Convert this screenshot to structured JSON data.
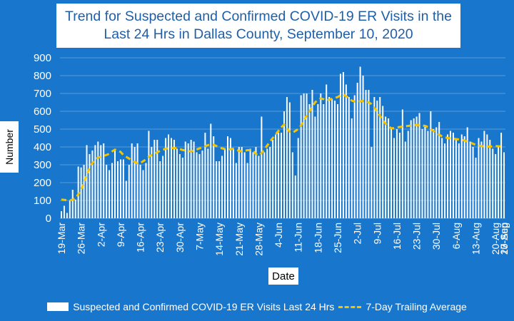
{
  "colors": {
    "background": "#1877cc",
    "bars": "#ffffff",
    "average_line": "#f5c400",
    "grid": "#5a9ad8",
    "title_text": "#1f5fa8"
  },
  "chart_data": {
    "type": "bar",
    "title_line1": "Trend for Suspected and Confirmed COVID-19 ER Visits in the",
    "title_line2": "Last 24 Hrs in Dallas County, September 10, 2020",
    "xlabel": "Date",
    "ylabel": "Number",
    "ylim": [
      0,
      900
    ],
    "yticks": [
      0,
      100,
      200,
      300,
      400,
      500,
      600,
      700,
      800,
      900
    ],
    "xtick_labels": [
      "19-Mar",
      "26-Mar",
      "2-Apr",
      "9-Apr",
      "16-Apr",
      "23-Apr",
      "30-Apr",
      "7-May",
      "14-May",
      "21-May",
      "28-May",
      "4-Jun",
      "11-Jun",
      "18-Jun",
      "25-Jun",
      "2-Jul",
      "9-Jul",
      "16-Jul",
      "23-Jul",
      "30-Jul",
      "6-Aug",
      "13-Aug",
      "20-Aug",
      "27-Aug",
      "3-Sep",
      "10-Sep"
    ],
    "series": [
      {
        "name": "Suspected and Confirmed COVID-19 ER Visits Last 24 Hrs",
        "kind": "bar",
        "values": [
          40,
          70,
          30,
          100,
          160,
          105,
          290,
          285,
          300,
          410,
          360,
          380,
          410,
          430,
          410,
          420,
          300,
          270,
          310,
          390,
          320,
          330,
          330,
          210,
          300,
          420,
          400,
          420,
          300,
          270,
          310,
          490,
          400,
          440,
          440,
          320,
          350,
          450,
          470,
          450,
          440,
          390,
          360,
          340,
          430,
          420,
          440,
          430,
          370,
          360,
          380,
          480,
          390,
          530,
          460,
          320,
          320,
          350,
          390,
          460,
          450,
          390,
          310,
          400,
          400,
          370,
          310,
          390,
          370,
          400,
          350,
          570,
          370,
          390,
          400,
          440,
          470,
          480,
          480,
          600,
          680,
          650,
          370,
          240,
          450,
          690,
          700,
          700,
          640,
          720,
          570,
          640,
          700,
          640,
          750,
          680,
          670,
          660,
          640,
          810,
          820,
          750,
          680,
          560,
          690,
          760,
          850,
          800,
          720,
          720,
          400,
          680,
          660,
          680,
          630,
          570,
          560,
          500,
          450,
          500,
          480,
          610,
          430,
          490,
          550,
          560,
          570,
          590,
          500,
          520,
          490,
          600,
          500,
          510,
          540,
          450,
          420,
          470,
          490,
          480,
          450,
          420,
          470,
          460,
          510,
          430,
          400,
          340,
          450,
          430,
          490,
          470,
          440,
          390,
          360,
          400,
          480,
          370
        ]
      },
      {
        "name": "7-Day Trailing Average",
        "kind": "line",
        "values": [
          105,
          103,
          102,
          100,
          105,
          110,
          135,
          160,
          200,
          245,
          280,
          310,
          330,
          340,
          345,
          350,
          355,
          362,
          375,
          385,
          380,
          372,
          355,
          345,
          335,
          325,
          316,
          308,
          310,
          320,
          330,
          345,
          355,
          362,
          370,
          378,
          384,
          390,
          392,
          393,
          394,
          392,
          388,
          383,
          380,
          376,
          375,
          380,
          386,
          392,
          398,
          405,
          410,
          415,
          412,
          405,
          398,
          392,
          388,
          385,
          388,
          390,
          385,
          378,
          375,
          378,
          382,
          382,
          378,
          360,
          352,
          365,
          385,
          408,
          430,
          450,
          470,
          490,
          510,
          525,
          505,
          485,
          480,
          490,
          500,
          520,
          550,
          575,
          600,
          625,
          650,
          665,
          672,
          668,
          660,
          665,
          670,
          675,
          680,
          690,
          692,
          685,
          672,
          660,
          655,
          655,
          656,
          658,
          656,
          650,
          640,
          620,
          598,
          575,
          550,
          530,
          515,
          505,
          505,
          510,
          512,
          514,
          516,
          518,
          520,
          522,
          524,
          522,
          520,
          518,
          512,
          500,
          490,
          478,
          468,
          460,
          455,
          450,
          448,
          446,
          444,
          442,
          440,
          436,
          430,
          425,
          418,
          412,
          408,
          405,
          403,
          402,
          402,
          403,
          405,
          404,
          402,
          400
        ]
      }
    ]
  },
  "legend": {
    "bars_label": "Suspected and Confirmed COVID-19 ER Visits Last 24 Hrs",
    "line_label": "7-Day Trailing Average"
  }
}
